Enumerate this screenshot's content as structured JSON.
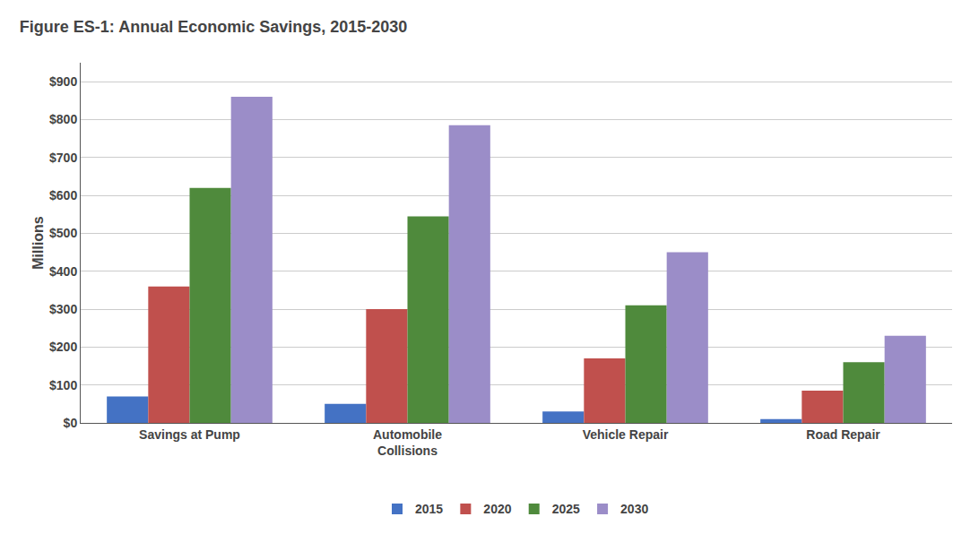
{
  "chart_data": {
    "type": "bar",
    "title": "Figure ES-1: Annual Economic Savings, 2015-2030",
    "ylabel": "Millions",
    "categories": [
      "Savings at Pump",
      "Automobile\nCollisions",
      "Vehicle Repair",
      "Road Repair"
    ],
    "series": [
      {
        "name": "2015",
        "color": "#4472C4",
        "values": [
          70,
          50,
          30,
          10
        ]
      },
      {
        "name": "2020",
        "color": "#C0504D",
        "values": [
          360,
          300,
          170,
          85
        ]
      },
      {
        "name": "2025",
        "color": "#4F8A3C",
        "values": [
          620,
          545,
          310,
          160
        ]
      },
      {
        "name": "2030",
        "color": "#9B8DC8",
        "values": [
          860,
          785,
          450,
          230
        ]
      }
    ],
    "ylim": [
      0,
      950
    ],
    "yticks": [
      {
        "value": 0,
        "label": "$0"
      },
      {
        "value": 100,
        "label": "$100"
      },
      {
        "value": 200,
        "label": "$200"
      },
      {
        "value": 300,
        "label": "$300"
      },
      {
        "value": 400,
        "label": "$400"
      },
      {
        "value": 500,
        "label": "$500"
      },
      {
        "value": 600,
        "label": "$600"
      },
      {
        "value": 700,
        "label": "$700"
      },
      {
        "value": 800,
        "label": "$800"
      },
      {
        "value": 900,
        "label": "$900"
      }
    ],
    "grid": true,
    "legend": "bottom"
  }
}
